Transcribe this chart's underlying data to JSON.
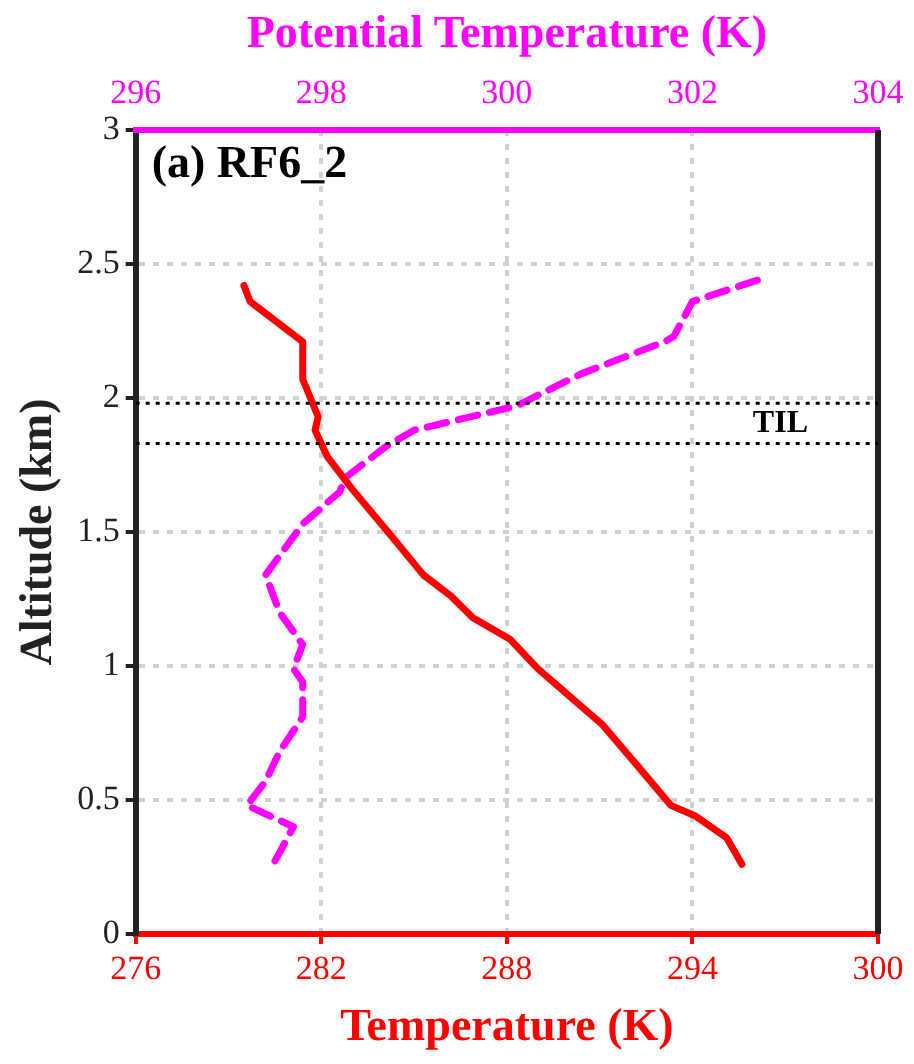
{
  "chart_data": {
    "type": "line",
    "xlabel": "Temperature (K)",
    "x2label": "Potential Temperature (K)",
    "ylabel": "Altitude (km)",
    "xlim": [
      276,
      300
    ],
    "xticks": [
      276,
      282,
      288,
      294,
      300
    ],
    "x2lim": [
      296,
      304
    ],
    "x2ticks": [
      296,
      298,
      300,
      302,
      304
    ],
    "ylim": [
      0,
      3
    ],
    "yticks": [
      0,
      0.5,
      1,
      1.5,
      2,
      2.5,
      3
    ],
    "grid": true,
    "legend": false,
    "marker": "none",
    "series": [
      {
        "color": "#ff0000",
        "line_style": "solid",
        "x": [
          279.5,
          279.7,
          281.4,
          281.4,
          281.9,
          281.8,
          282.2,
          283.0,
          284.3,
          285.3,
          286.2,
          286.9,
          288.1,
          289.0,
          289.7,
          290.2,
          291.1,
          292.5,
          293.3,
          294.1,
          295.1,
          295.6
        ],
        "values": [
          2.42,
          2.36,
          2.21,
          2.07,
          1.93,
          1.88,
          1.78,
          1.66,
          1.48,
          1.34,
          1.26,
          1.18,
          1.1,
          0.99,
          0.92,
          0.87,
          0.78,
          0.59,
          0.48,
          0.44,
          0.36,
          0.26
        ]
      },
      {
        "color": "#ff00ff",
        "line_style": "dashed",
        "axis": "x2",
        "x": [
          302.7,
          302.0,
          301.8,
          301.7,
          300.8,
          300.1,
          299.0,
          298.7,
          298.25,
          298.2,
          297.8,
          297.4,
          297.55,
          297.8,
          297.7,
          297.8,
          297.8,
          297.55,
          297.4,
          297.2,
          297.7,
          297.45
        ],
        "values": [
          2.44,
          2.36,
          2.23,
          2.21,
          2.09,
          1.97,
          1.88,
          1.82,
          1.7,
          1.65,
          1.53,
          1.34,
          1.2,
          1.08,
          0.99,
          0.94,
          0.81,
          0.68,
          0.57,
          0.48,
          0.4,
          0.24
        ]
      }
    ],
    "ref_lines": [
      {
        "axis": "y",
        "value": 1.98,
        "color": "#000000",
        "line_style": "dotted"
      },
      {
        "axis": "y",
        "value": 1.83,
        "label": "TIL",
        "color": "#000000",
        "line_style": "dotted"
      }
    ],
    "annotations": [
      "(a) RF6_2"
    ]
  }
}
